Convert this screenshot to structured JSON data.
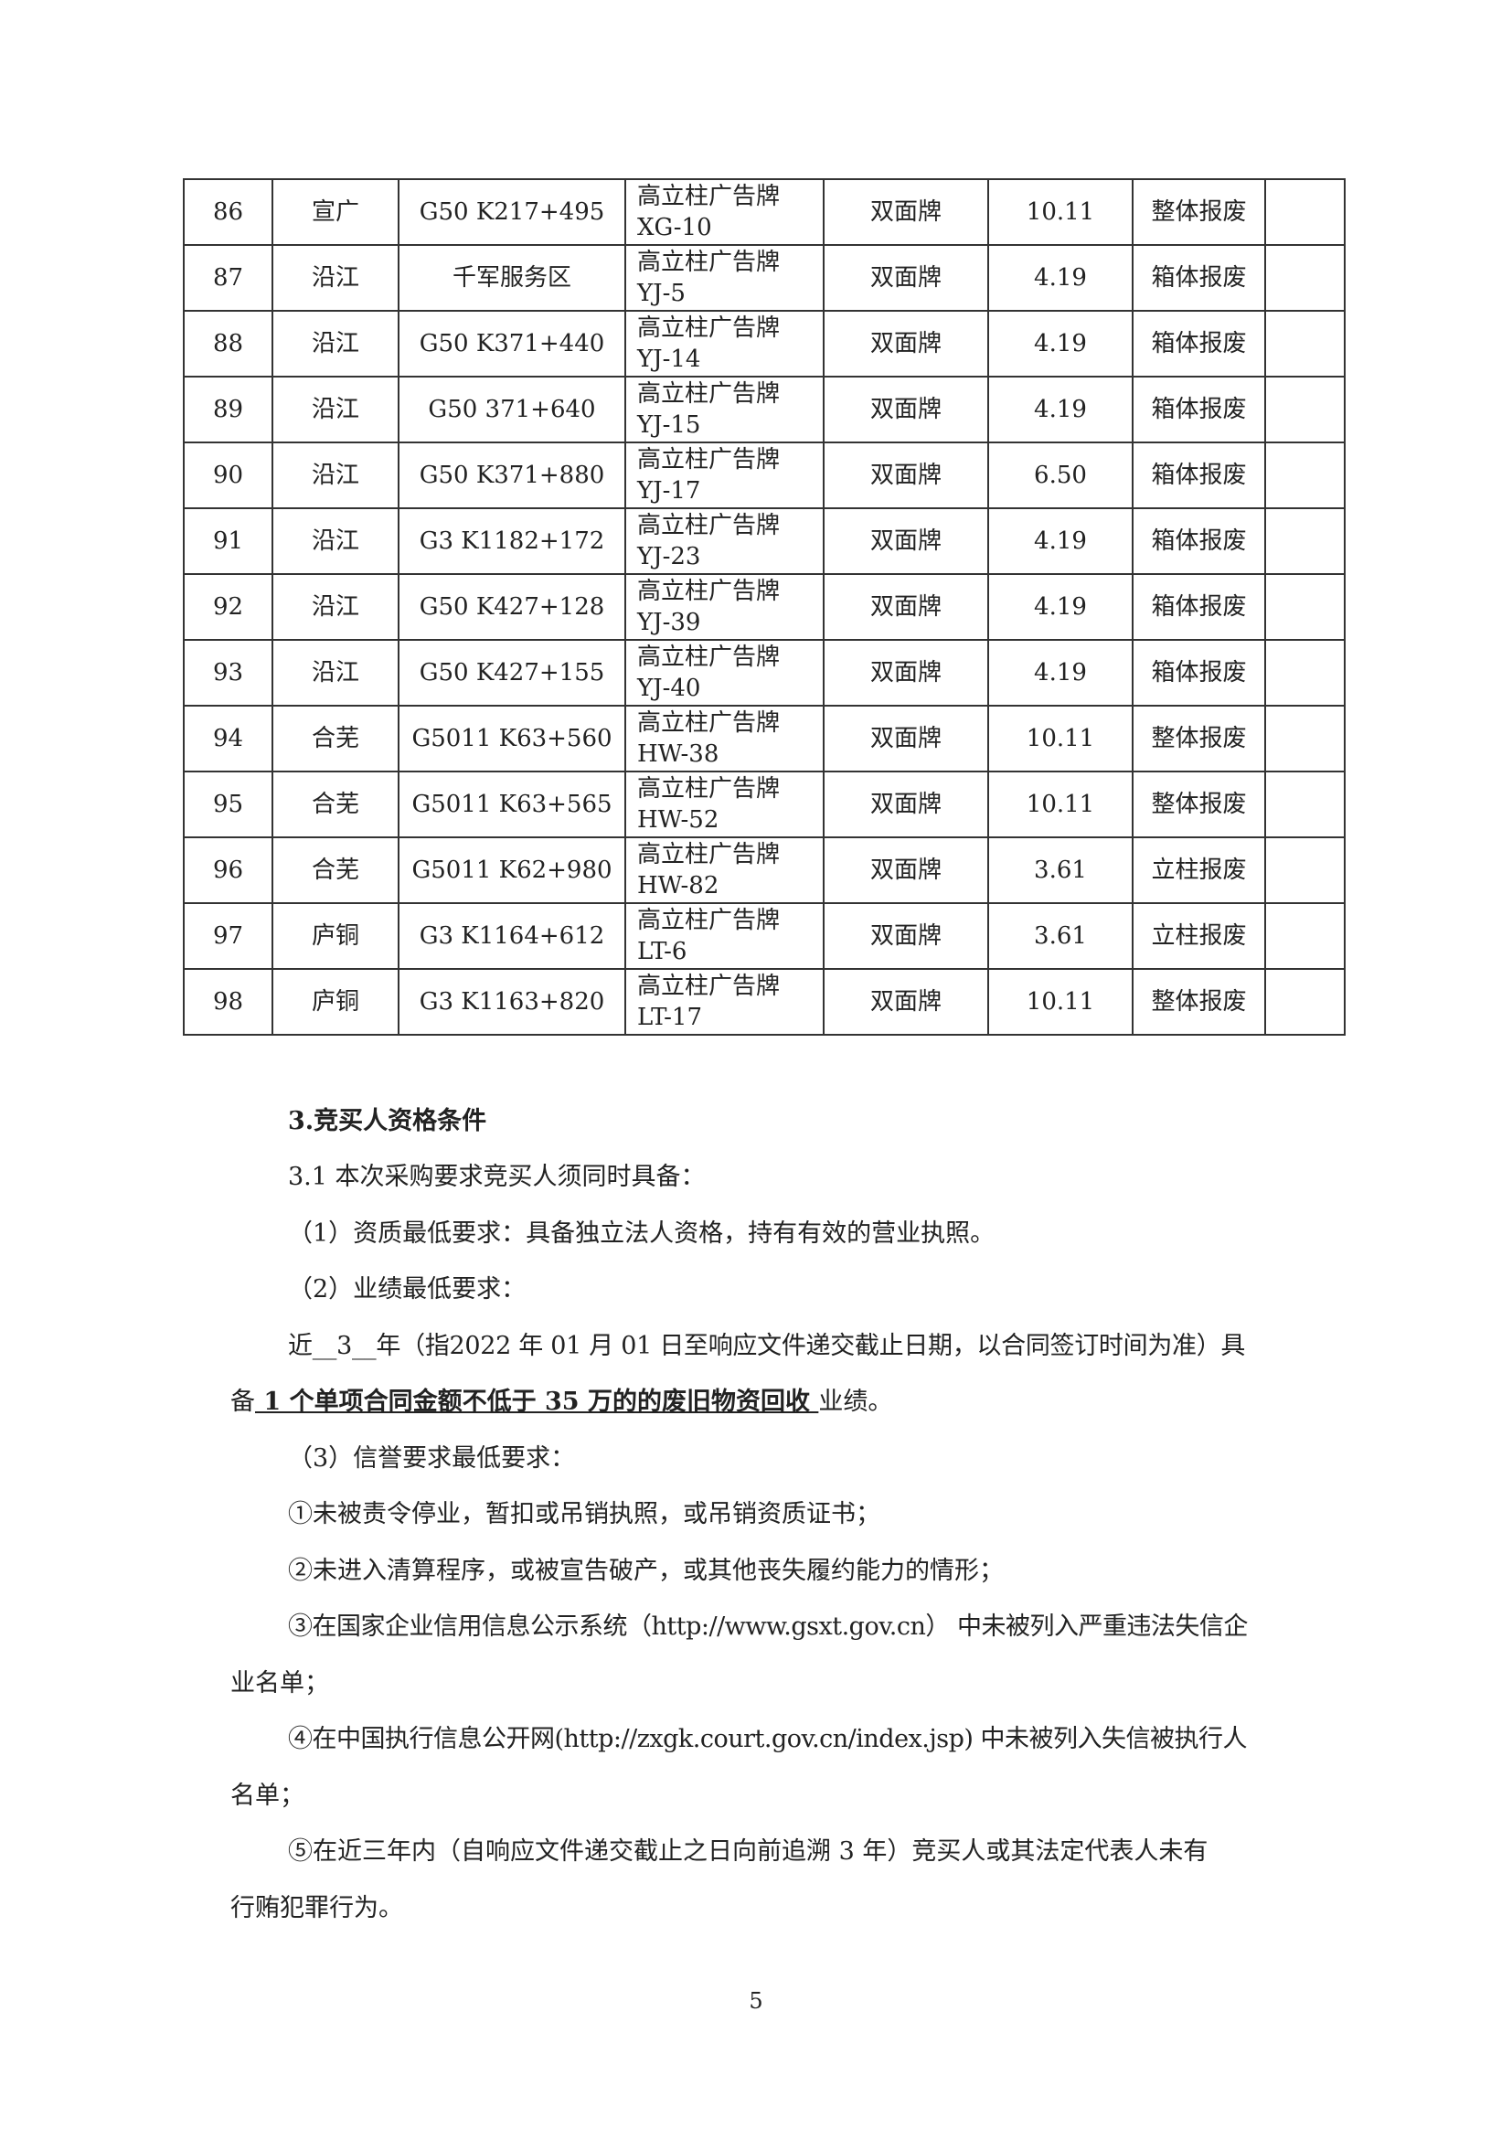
{
  "table": {
    "rows": [
      {
        "no": "86",
        "area": "宣广",
        "location": "G50 K217+495",
        "name": "高立柱广告牌",
        "code": "XG-10",
        "type": "双面牌",
        "size": "10.11",
        "disposal": "整体报废",
        "note": ""
      },
      {
        "no": "87",
        "area": "沿江",
        "location": "千军服务区",
        "name": "高立柱广告牌",
        "code": "YJ-5",
        "type": "双面牌",
        "size": "4.19",
        "disposal": "箱体报废",
        "note": ""
      },
      {
        "no": "88",
        "area": "沿江",
        "location": "G50 K371+440",
        "name": "高立柱广告牌",
        "code": "YJ-14",
        "type": "双面牌",
        "size": "4.19",
        "disposal": "箱体报废",
        "note": ""
      },
      {
        "no": "89",
        "area": "沿江",
        "location": "G50 371+640",
        "name": "高立柱广告牌",
        "code": "YJ-15",
        "type": "双面牌",
        "size": "4.19",
        "disposal": "箱体报废",
        "note": ""
      },
      {
        "no": "90",
        "area": "沿江",
        "location": "G50 K371+880",
        "name": "高立柱广告牌",
        "code": "YJ-17",
        "type": "双面牌",
        "size": "6.50",
        "disposal": "箱体报废",
        "note": ""
      },
      {
        "no": "91",
        "area": "沿江",
        "location": "G3 K1182+172",
        "name": "高立柱广告牌",
        "code": "YJ-23",
        "type": "双面牌",
        "size": "4.19",
        "disposal": "箱体报废",
        "note": ""
      },
      {
        "no": "92",
        "area": "沿江",
        "location": "G50 K427+128",
        "name": "高立柱广告牌",
        "code": "YJ-39",
        "type": "双面牌",
        "size": "4.19",
        "disposal": "箱体报废",
        "note": ""
      },
      {
        "no": "93",
        "area": "沿江",
        "location": "G50 K427+155",
        "name": "高立柱广告牌",
        "code": "YJ-40",
        "type": "双面牌",
        "size": "4.19",
        "disposal": "箱体报废",
        "note": ""
      },
      {
        "no": "94",
        "area": "合芜",
        "location": "G5011 K63+560",
        "name": "高立柱广告牌",
        "code": "HW-38",
        "type": "双面牌",
        "size": "10.11",
        "disposal": "整体报废",
        "note": ""
      },
      {
        "no": "95",
        "area": "合芜",
        "location": "G5011 K63+565",
        "name": "高立柱广告牌",
        "code": "HW-52",
        "type": "双面牌",
        "size": "10.11",
        "disposal": "整体报废",
        "note": ""
      },
      {
        "no": "96",
        "area": "合芜",
        "location": "G5011 K62+980",
        "name": "高立柱广告牌",
        "code": "HW-82",
        "type": "双面牌",
        "size": "3.61",
        "disposal": "立柱报废",
        "note": ""
      },
      {
        "no": "97",
        "area": "庐铜",
        "location": "G3 K1164+612",
        "name": "高立柱广告牌",
        "code": "LT-6",
        "type": "双面牌",
        "size": "3.61",
        "disposal": "立柱报废",
        "note": ""
      },
      {
        "no": "98",
        "area": "庐铜",
        "location": "G3 K1163+820",
        "name": "高立柱广告牌",
        "code": "LT-17",
        "type": "双面牌",
        "size": "10.11",
        "disposal": "整体报废",
        "note": ""
      }
    ]
  },
  "section": {
    "heading": "3.竞买人资格条件",
    "p1": "3.1 本次采购要求竞买人须同时具备：",
    "p2": "（1）资质最低要求：具备独立法人资格，持有有效的营业执照。",
    "p3": "（2）业绩最低要求：",
    "p4a": "近__3__年（指2022 年 01 月 01 日至响应文件递交截止日期，以合同签订时间为准）具",
    "p4b_pre": "备",
    "p4b_u": " 1 个单项合同金额不低于 35 万的的废旧物资回收 ",
    "p4b_post": "业绩。",
    "p5": "（3）信誉要求最低要求：",
    "p6": "①未被责令停业，暂扣或吊销执照，或吊销资质证书；",
    "p7": "②未进入清算程序，或被宣告破产，或其他丧失履约能力的情形；",
    "p8a": "③在国家企业信用信息公示系统（http://www.gsxt.gov.cn） 中未被列入严重违法失信企",
    "p8b": "业名单；",
    "p9a": "④在中国执行信息公开网(http://zxgk.court.gov.cn/index.jsp) 中未被列入失信被执行人",
    "p9b": "名单；",
    "p10a": "⑤在近三年内（自响应文件递交截止之日向前追溯 3 年）竞买人或其法定代表人未有",
    "p10b": "行贿犯罪行为。"
  },
  "page_number": "5"
}
